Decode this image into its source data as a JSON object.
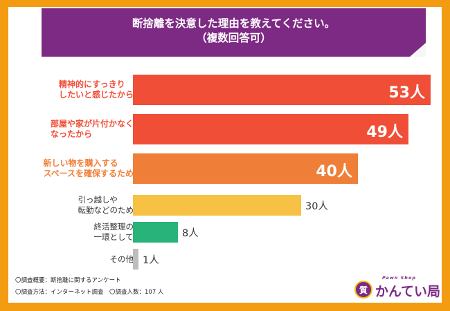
{
  "title": {
    "line1": "断捨離を決意した理由を教えてください。",
    "line2": "（複数回答可）"
  },
  "chart_data": {
    "type": "bar",
    "orientation": "horizontal",
    "unit": "人",
    "categories": [
      [
        "精神的にすっきり",
        "したいと感じたから"
      ],
      [
        "部屋や家が片付かなく",
        "なったから"
      ],
      [
        "新しい物を購入する",
        "スペースを確保するため"
      ],
      [
        "引っ越しや",
        "転勤などのため"
      ],
      [
        "終活整理の",
        "一環として"
      ],
      [
        "その他"
      ]
    ],
    "values": [
      53,
      49,
      40,
      30,
      8,
      1
    ],
    "labels": [
      "53人",
      "49人",
      "40人",
      "30人",
      "8人",
      "1人"
    ],
    "bar_colors": [
      "#f04e37",
      "#f04e37",
      "#ef7f38",
      "#f7c243",
      "#27b37a",
      "#bdbdbd"
    ],
    "label_colors": [
      "#f04e37",
      "#f04e37",
      "#ef7f38",
      "#333333",
      "#333333",
      "#333333"
    ]
  },
  "footer": {
    "note1": "〇調査概要：断捨離に関するアンケート",
    "note2": "〇調査方法：インターネット調査　〇調査人数：107 人"
  },
  "logo": {
    "badge": "質",
    "small": "Pawn Shop",
    "main": "かんてい局",
    "icon": "pawn-shop-badge-icon"
  },
  "colors": {
    "background": "#f39c12",
    "title_banner": "#7d2a84"
  }
}
